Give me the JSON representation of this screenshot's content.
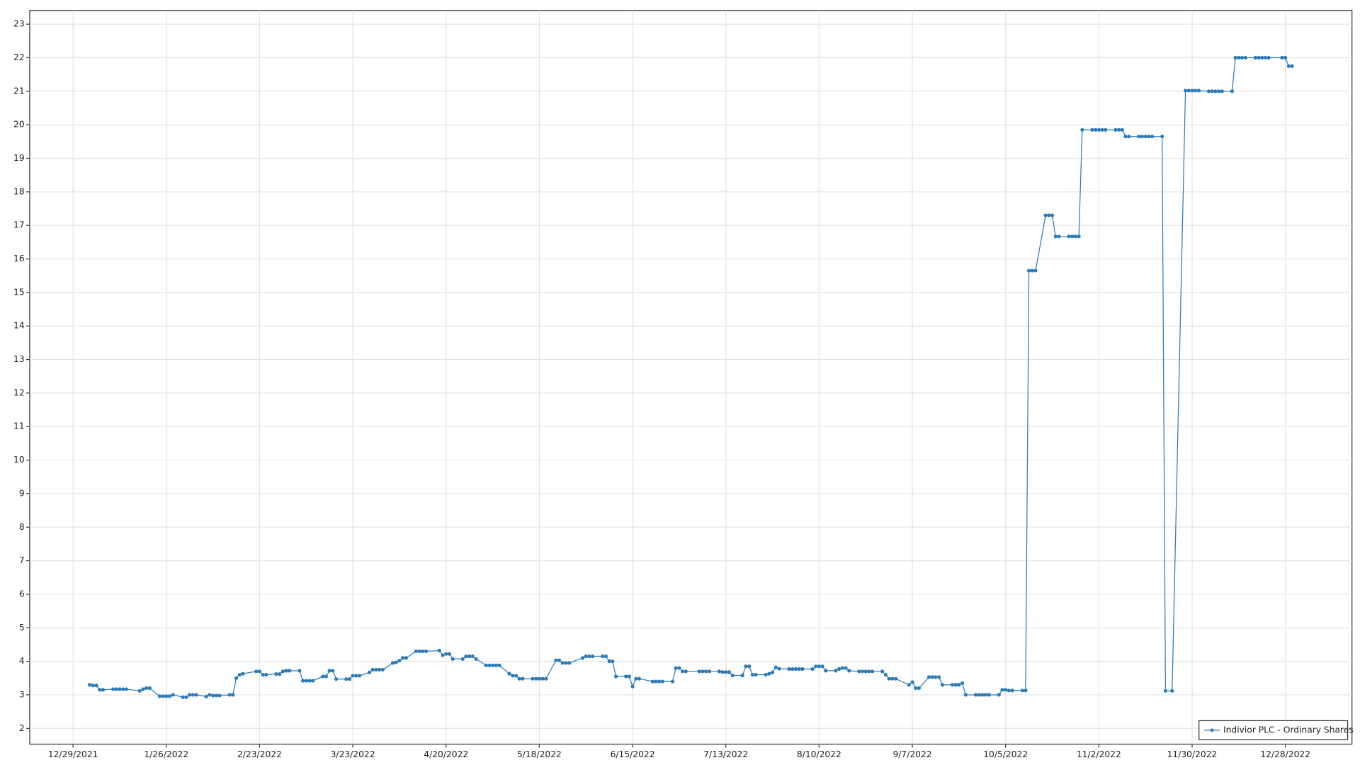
{
  "chart_data": {
    "type": "line",
    "grid": true,
    "legend": "lower right",
    "xlim": [
      "12/16/2021",
      "1/17/2023"
    ],
    "xticks": [
      "12/29/2021",
      "1/26/2022",
      "2/23/2022",
      "3/23/2022",
      "4/20/2022",
      "5/18/2022",
      "6/15/2022",
      "7/13/2022",
      "8/10/2022",
      "9/7/2022",
      "10/5/2022",
      "11/2/2022",
      "11/30/2022",
      "12/28/2022"
    ],
    "ylim": [
      1.53,
      23.41
    ],
    "yticks": [
      2,
      3,
      4,
      5,
      6,
      7,
      8,
      9,
      10,
      11,
      12,
      13,
      14,
      15,
      16,
      17,
      18,
      19,
      20,
      21,
      22,
      23
    ],
    "x": [
      "1/3/2022",
      "1/4/2022",
      "1/5/2022",
      "1/6/2022",
      "1/7/2022",
      "1/10/2022",
      "1/11/2022",
      "1/12/2022",
      "1/13/2022",
      "1/14/2022",
      "1/18/2022",
      "1/19/2022",
      "1/20/2022",
      "1/21/2022",
      "1/24/2022",
      "1/25/2022",
      "1/26/2022",
      "1/27/2022",
      "1/28/2022",
      "1/31/2022",
      "2/1/2022",
      "2/2/2022",
      "2/3/2022",
      "2/4/2022",
      "2/7/2022",
      "2/8/2022",
      "2/9/2022",
      "2/10/2022",
      "2/11/2022",
      "2/14/2022",
      "2/15/2022",
      "2/16/2022",
      "2/17/2022",
      "2/18/2022",
      "2/22/2022",
      "2/23/2022",
      "2/24/2022",
      "2/25/2022",
      "2/28/2022",
      "3/1/2022",
      "3/2/2022",
      "3/3/2022",
      "3/4/2022",
      "3/7/2022",
      "3/8/2022",
      "3/9/2022",
      "3/10/2022",
      "3/11/2022",
      "3/14/2022",
      "3/15/2022",
      "3/16/2022",
      "3/17/2022",
      "3/18/2022",
      "3/21/2022",
      "3/22/2022",
      "3/23/2022",
      "3/24/2022",
      "3/25/2022",
      "3/28/2022",
      "3/29/2022",
      "3/30/2022",
      "3/31/2022",
      "4/1/2022",
      "4/4/2022",
      "4/5/2022",
      "4/6/2022",
      "4/7/2022",
      "4/8/2022",
      "4/11/2022",
      "4/12/2022",
      "4/13/2022",
      "4/14/2022",
      "4/18/2022",
      "4/19/2022",
      "4/20/2022",
      "4/21/2022",
      "4/22/2022",
      "4/25/2022",
      "4/26/2022",
      "4/27/2022",
      "4/28/2022",
      "4/29/2022",
      "5/2/2022",
      "5/3/2022",
      "5/4/2022",
      "5/5/2022",
      "5/6/2022",
      "5/9/2022",
      "5/10/2022",
      "5/11/2022",
      "5/12/2022",
      "5/13/2022",
      "5/16/2022",
      "5/17/2022",
      "5/18/2022",
      "5/19/2022",
      "5/20/2022",
      "5/23/2022",
      "5/24/2022",
      "5/25/2022",
      "5/26/2022",
      "5/27/2022",
      "5/31/2022",
      "6/1/2022",
      "6/2/2022",
      "6/3/2022",
      "6/6/2022",
      "6/7/2022",
      "6/8/2022",
      "6/9/2022",
      "6/10/2022",
      "6/13/2022",
      "6/14/2022",
      "6/15/2022",
      "6/16/2022",
      "6/17/2022",
      "6/21/2022",
      "6/22/2022",
      "6/23/2022",
      "6/24/2022",
      "6/27/2022",
      "6/28/2022",
      "6/29/2022",
      "6/30/2022",
      "7/1/2022",
      "7/5/2022",
      "7/6/2022",
      "7/7/2022",
      "7/8/2022",
      "7/11/2022",
      "7/12/2022",
      "7/13/2022",
      "7/14/2022",
      "7/15/2022",
      "7/18/2022",
      "7/19/2022",
      "7/20/2022",
      "7/21/2022",
      "7/22/2022",
      "7/25/2022",
      "7/26/2022",
      "7/27/2022",
      "7/28/2022",
      "7/29/2022",
      "8/1/2022",
      "8/2/2022",
      "8/3/2022",
      "8/4/2022",
      "8/5/2022",
      "8/8/2022",
      "8/9/2022",
      "8/10/2022",
      "8/11/2022",
      "8/12/2022",
      "8/15/2022",
      "8/16/2022",
      "8/17/2022",
      "8/18/2022",
      "8/19/2022",
      "8/22/2022",
      "8/23/2022",
      "8/24/2022",
      "8/25/2022",
      "8/26/2022",
      "8/29/2022",
      "8/30/2022",
      "8/31/2022",
      "9/1/2022",
      "9/2/2022",
      "9/6/2022",
      "9/7/2022",
      "9/8/2022",
      "9/9/2022",
      "9/12/2022",
      "9/13/2022",
      "9/14/2022",
      "9/15/2022",
      "9/16/2022",
      "9/19/2022",
      "9/20/2022",
      "9/21/2022",
      "9/22/2022",
      "9/23/2022",
      "9/26/2022",
      "9/27/2022",
      "9/28/2022",
      "9/29/2022",
      "9/30/2022",
      "10/3/2022",
      "10/4/2022",
      "10/5/2022",
      "10/6/2022",
      "10/7/2022",
      "10/10/2022",
      "10/11/2022",
      "10/12/2022",
      "10/13/2022",
      "10/14/2022",
      "10/17/2022",
      "10/18/2022",
      "10/19/2022",
      "10/20/2022",
      "10/21/2022",
      "10/24/2022",
      "10/25/2022",
      "10/26/2022",
      "10/27/2022",
      "10/28/2022",
      "10/31/2022",
      "11/1/2022",
      "11/2/2022",
      "11/3/2022",
      "11/4/2022",
      "11/7/2022",
      "11/8/2022",
      "11/9/2022",
      "11/10/2022",
      "11/11/2022",
      "11/14/2022",
      "11/15/2022",
      "11/16/2022",
      "11/17/2022",
      "11/18/2022",
      "11/21/2022",
      "11/22/2022",
      "11/24/2022",
      "11/28/2022",
      "11/29/2022",
      "11/30/2022",
      "12/1/2022",
      "12/2/2022",
      "12/5/2022",
      "12/6/2022",
      "12/7/2022",
      "12/8/2022",
      "12/9/2022",
      "12/12/2022",
      "12/13/2022",
      "12/14/2022",
      "12/15/2022",
      "12/16/2022",
      "12/19/2022",
      "12/20/2022",
      "12/21/2022",
      "12/22/2022",
      "12/23/2022",
      "12/27/2022",
      "12/28/2022",
      "12/29/2022",
      "12/30/2022"
    ],
    "series": [
      {
        "name": "Indivior PLC - Ordinary Shares",
        "color": "#2a7ab8",
        "values": [
          3.3,
          3.28,
          3.28,
          3.15,
          3.15,
          3.17,
          3.17,
          3.17,
          3.17,
          3.17,
          3.12,
          3.17,
          3.2,
          3.2,
          2.96,
          2.96,
          2.96,
          2.96,
          3.0,
          2.93,
          2.93,
          3.0,
          3.0,
          3.0,
          2.95,
          3.0,
          2.98,
          2.98,
          2.98,
          3.0,
          3.0,
          3.5,
          3.6,
          3.63,
          3.7,
          3.7,
          3.6,
          3.6,
          3.62,
          3.62,
          3.7,
          3.72,
          3.72,
          3.72,
          3.42,
          3.42,
          3.42,
          3.42,
          3.55,
          3.55,
          3.72,
          3.72,
          3.47,
          3.47,
          3.47,
          3.57,
          3.57,
          3.57,
          3.67,
          3.75,
          3.75,
          3.75,
          3.75,
          3.95,
          3.97,
          4.02,
          4.1,
          4.1,
          4.3,
          4.3,
          4.3,
          4.3,
          4.32,
          4.18,
          4.22,
          4.22,
          4.07,
          4.07,
          4.15,
          4.15,
          4.15,
          4.07,
          3.88,
          3.88,
          3.88,
          3.88,
          3.88,
          3.63,
          3.57,
          3.57,
          3.48,
          3.48,
          3.48,
          3.48,
          3.48,
          3.48,
          3.48,
          4.03,
          4.03,
          3.95,
          3.95,
          3.95,
          4.1,
          4.15,
          4.15,
          4.15,
          4.15,
          4.15,
          4.0,
          4.0,
          3.55,
          3.55,
          3.55,
          3.25,
          3.48,
          3.48,
          3.4,
          3.4,
          3.4,
          3.4,
          3.4,
          3.8,
          3.8,
          3.7,
          3.7,
          3.7,
          3.7,
          3.7,
          3.7,
          3.7,
          3.68,
          3.68,
          3.68,
          3.58,
          3.58,
          3.85,
          3.85,
          3.6,
          3.6,
          3.6,
          3.63,
          3.67,
          3.82,
          3.78,
          3.77,
          3.77,
          3.77,
          3.77,
          3.77,
          3.77,
          3.85,
          3.85,
          3.85,
          3.72,
          3.72,
          3.77,
          3.8,
          3.8,
          3.72,
          3.7,
          3.7,
          3.7,
          3.7,
          3.7,
          3.7,
          3.6,
          3.48,
          3.48,
          3.48,
          3.3,
          3.38,
          3.2,
          3.2,
          3.53,
          3.53,
          3.53,
          3.53,
          3.3,
          3.3,
          3.3,
          3.3,
          3.35,
          3.0,
          3.0,
          3.0,
          3.0,
          3.0,
          3.0,
          3.0,
          3.15,
          3.15,
          3.13,
          3.13,
          3.13,
          3.13,
          15.65,
          15.65,
          15.65,
          17.3,
          17.3,
          17.3,
          16.67,
          16.67,
          16.67,
          16.67,
          16.67,
          16.67,
          19.85,
          19.85,
          19.85,
          19.85,
          19.85,
          19.85,
          19.85,
          19.85,
          19.85,
          19.65,
          19.65,
          19.65,
          19.65,
          19.65,
          19.65,
          19.65,
          19.65,
          3.12,
          3.12,
          21.02,
          21.02,
          21.02,
          21.02,
          21.02,
          21.0,
          21.0,
          21.0,
          21.0,
          21.0,
          21.0,
          22,
          22,
          22,
          22,
          22,
          22,
          22,
          22,
          22,
          22,
          22,
          21.75,
          21.75
        ]
      }
    ]
  }
}
